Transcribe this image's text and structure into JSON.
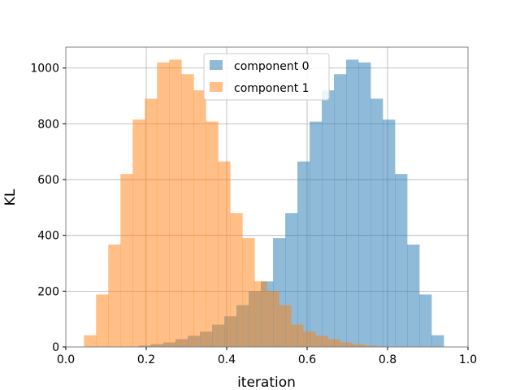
{
  "chart_data": {
    "type": "bar",
    "xlabel": "iteration",
    "ylabel": "KL",
    "xlim": [
      0.0,
      1.0
    ],
    "ylim": [
      0,
      1075
    ],
    "xticks": [
      "0.0",
      "0.2",
      "0.4",
      "0.6",
      "0.8",
      "1.0"
    ],
    "yticks": [
      "0",
      "200",
      "400",
      "600",
      "800",
      "1000"
    ],
    "grid": true,
    "legend_position": "top-center",
    "bin_width": 0.0303,
    "series": [
      {
        "name": "component 0",
        "color": "#1f77b4",
        "opacity": 0.5,
        "bins": [
          [
            0.1819,
            5
          ],
          [
            0.2122,
            10
          ],
          [
            0.2425,
            16
          ],
          [
            0.2728,
            28
          ],
          [
            0.3031,
            40
          ],
          [
            0.3334,
            55
          ],
          [
            0.3637,
            80
          ],
          [
            0.394,
            110
          ],
          [
            0.4243,
            150
          ],
          [
            0.4546,
            200
          ],
          [
            0.4849,
            235
          ],
          [
            0.5152,
            390
          ],
          [
            0.5455,
            480
          ],
          [
            0.5758,
            665
          ],
          [
            0.6061,
            808
          ],
          [
            0.6364,
            920
          ],
          [
            0.6667,
            978
          ],
          [
            0.697,
            1030
          ],
          [
            0.7273,
            1020
          ],
          [
            0.7576,
            890
          ],
          [
            0.7879,
            815
          ],
          [
            0.8182,
            620
          ],
          [
            0.8485,
            367
          ],
          [
            0.8788,
            188
          ],
          [
            0.9091,
            42
          ]
        ]
      },
      {
        "name": "component 1",
        "color": "#ff7f0e",
        "opacity": 0.5,
        "bins": [
          [
            0.045,
            42
          ],
          [
            0.0753,
            188
          ],
          [
            0.1056,
            367
          ],
          [
            0.1359,
            620
          ],
          [
            0.1662,
            815
          ],
          [
            0.1965,
            890
          ],
          [
            0.2268,
            1020
          ],
          [
            0.2571,
            1030
          ],
          [
            0.2874,
            978
          ],
          [
            0.3177,
            920
          ],
          [
            0.348,
            808
          ],
          [
            0.3783,
            665
          ],
          [
            0.4086,
            480
          ],
          [
            0.4389,
            390
          ],
          [
            0.4692,
            235
          ],
          [
            0.4995,
            200
          ],
          [
            0.5298,
            150
          ],
          [
            0.5601,
            80
          ],
          [
            0.5904,
            55
          ],
          [
            0.6207,
            40
          ],
          [
            0.651,
            28
          ],
          [
            0.6813,
            16
          ],
          [
            0.7116,
            10
          ],
          [
            0.7419,
            5
          ],
          [
            0.7722,
            2
          ]
        ]
      }
    ]
  }
}
